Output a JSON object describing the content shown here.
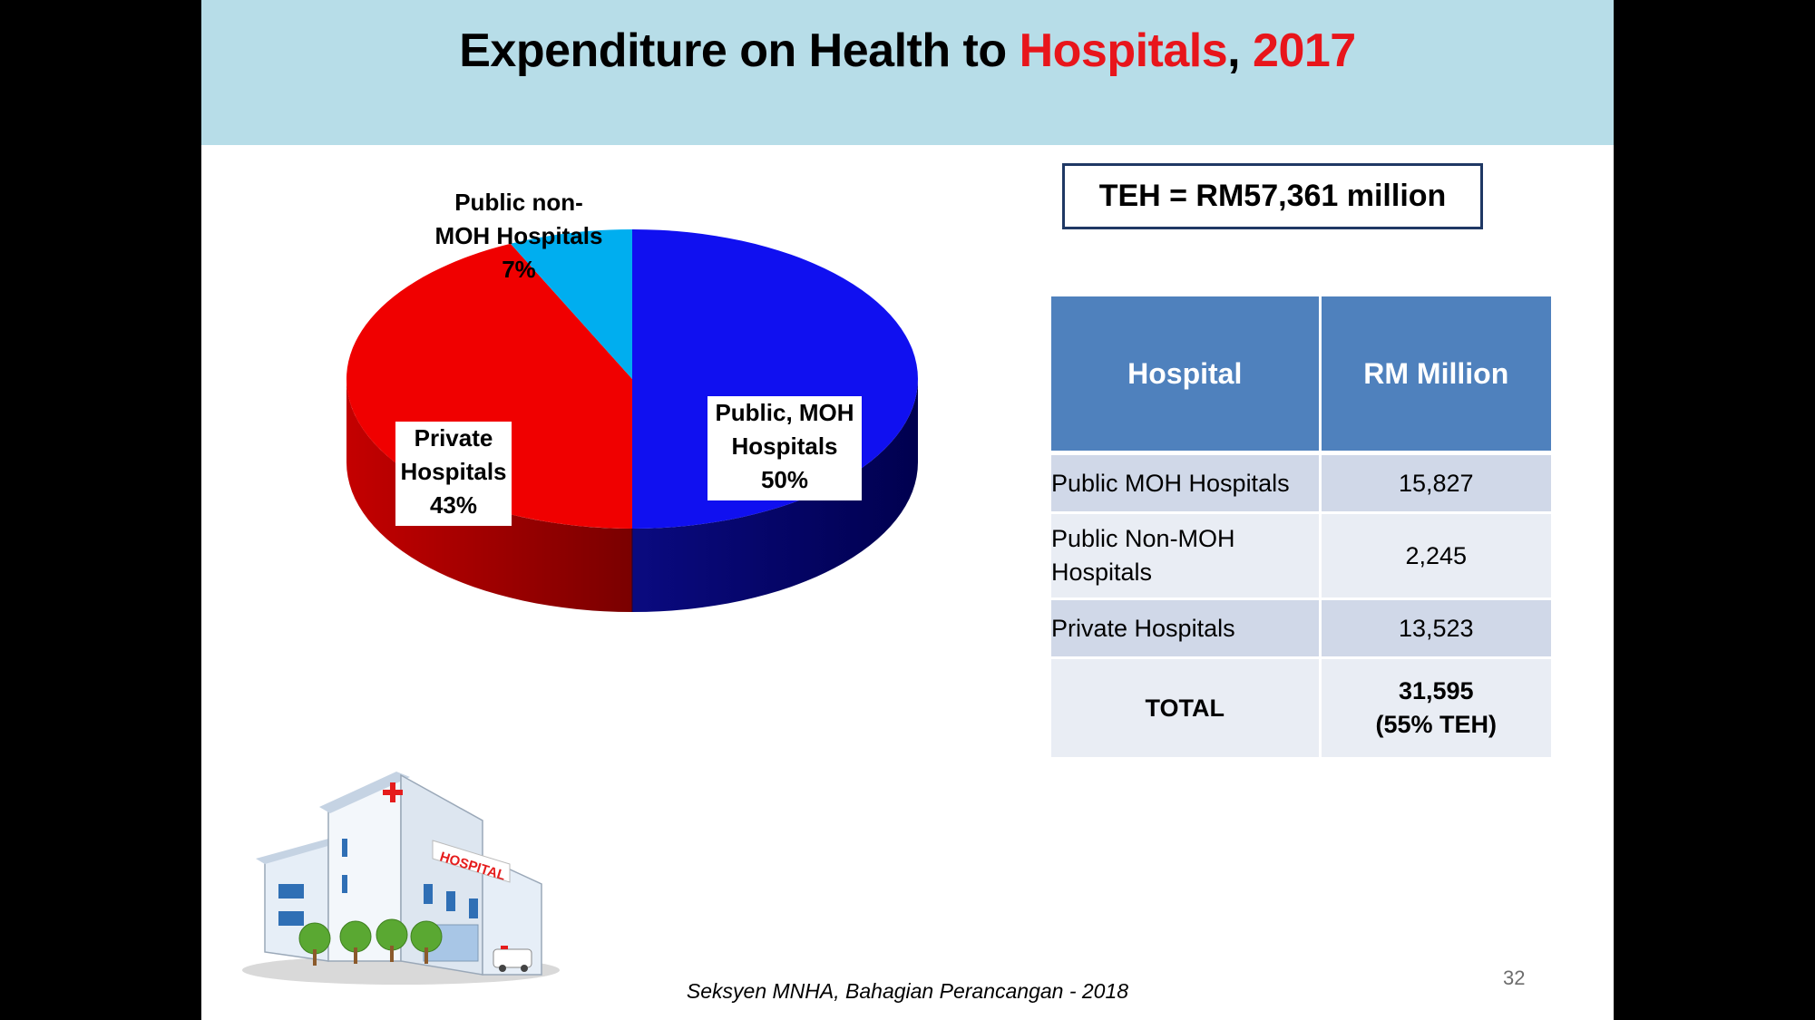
{
  "title": {
    "prefix": "Expenditure on Health to ",
    "highlight": "Hospitals",
    "separator": ", ",
    "year": "2017"
  },
  "teh_box": "TEH = RM57,361  million",
  "colors": {
    "public_moh": "#1010f0",
    "private": "#f00000",
    "public_non_moh": "#00aeef",
    "title_band": "#b7dde8",
    "table_header": "#4f81bd",
    "accent_red": "#e8151b"
  },
  "chart_data": {
    "type": "pie",
    "style": "3d",
    "slices": [
      {
        "label": "Public, MOH Hospitals",
        "value": 50,
        "display": "50%",
        "color": "#1010f0"
      },
      {
        "label": "Private Hospitals",
        "value": 43,
        "display": "43%",
        "color": "#f00000"
      },
      {
        "label": "Public non-MOH Hospitals",
        "value": 7,
        "display": "7%",
        "color": "#00aeef"
      }
    ],
    "labels": {
      "moh": [
        "Public, MOH",
        "Hospitals",
        "50%"
      ],
      "private": [
        "Private",
        "Hospitals",
        "43%"
      ],
      "non_moh": [
        "Public non-",
        "MOH Hospitals",
        "7%"
      ]
    }
  },
  "table": {
    "headers": [
      "Hospital",
      "RM Million"
    ],
    "rows": [
      {
        "hospital": "Public MOH Hospitals",
        "value": "15,827"
      },
      {
        "hospital_line1": "Public Non-MOH",
        "hospital_line2": "Hospitals",
        "value": "2,245"
      },
      {
        "hospital": "Private Hospitals",
        "value": "13,523"
      }
    ],
    "total": {
      "label": "TOTAL",
      "value_line1": "31,595",
      "value_line2": "(55% TEH)"
    }
  },
  "illustration": {
    "sign_text": "HOSPITAL",
    "icon": "hospital-building-icon"
  },
  "footer": "Seksyen MNHA, Bahagian Perancangan - 2018",
  "page_number": "32"
}
